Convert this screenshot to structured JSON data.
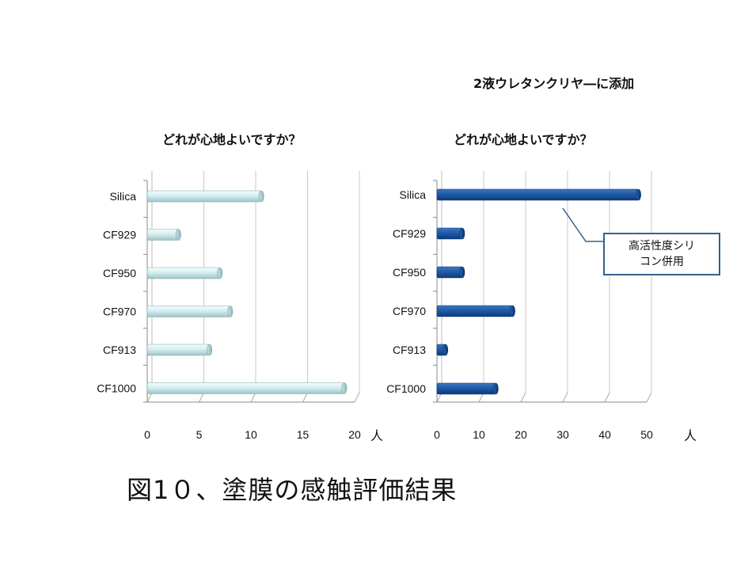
{
  "top_note": "2液ウレタンクリヤ―に添加",
  "caption": "図1０、塗膜の感触評価結果",
  "callout": {
    "line1": "高活性度シリ",
    "line2": "コン併用"
  },
  "chart_data": [
    {
      "type": "bar",
      "orientation": "horizontal",
      "title": "どれが心地よいですか？",
      "categories": [
        "Silica",
        "CF929",
        "CF950",
        "CF970",
        "CF913",
        "CF1000"
      ],
      "values": [
        11,
        3,
        7,
        8,
        6,
        19
      ],
      "xticks": [
        0,
        5,
        10,
        15,
        20
      ],
      "xlim": [
        0,
        20
      ],
      "unit": "人",
      "grid": true,
      "color": "#d8f0f2"
    },
    {
      "type": "bar",
      "orientation": "horizontal",
      "title": "どれが心地よいですか？",
      "categories": [
        "Silica",
        "CF929",
        "CF950",
        "CF970",
        "CF913",
        "CF1000"
      ],
      "values": [
        48,
        6,
        6,
        18,
        2,
        14
      ],
      "xticks": [
        0,
        10,
        20,
        30,
        40,
        50
      ],
      "xlim": [
        0,
        50
      ],
      "unit": "人",
      "grid": true,
      "color": "#1f5aa8"
    }
  ]
}
